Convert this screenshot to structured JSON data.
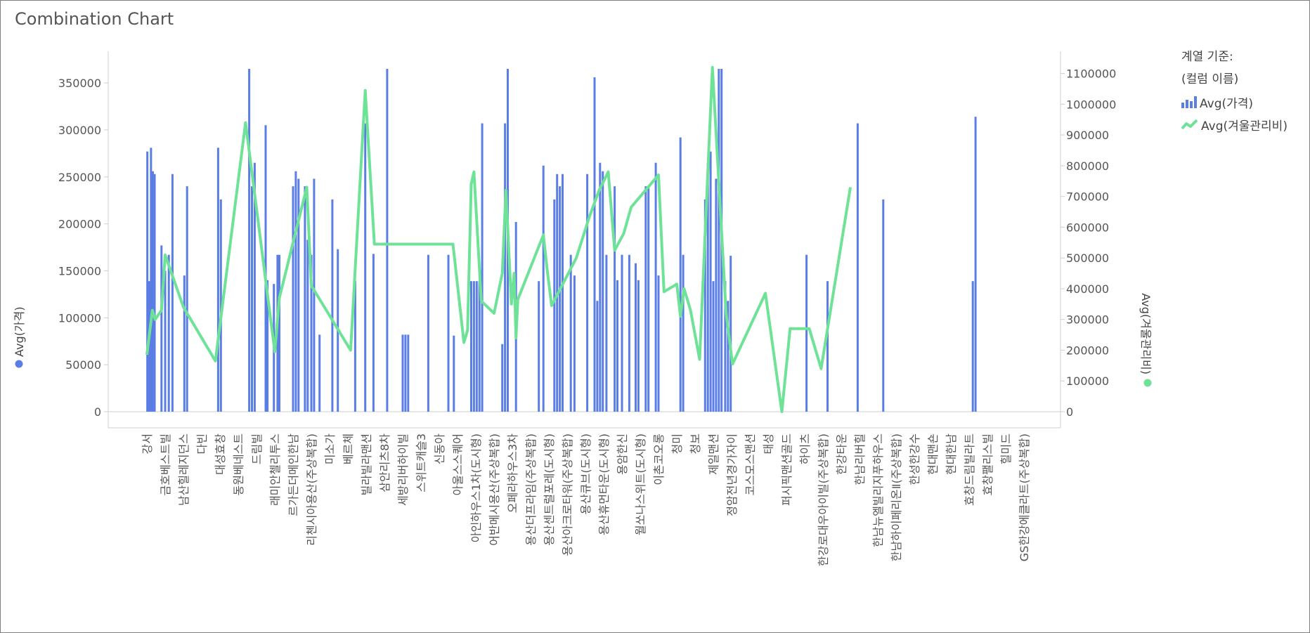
{
  "title": "Combination Chart",
  "legend": {
    "title_line1": "계열 기준:",
    "title_line2": "(컬럼 이름)",
    "items": [
      {
        "label": "Avg(가격)",
        "icon": "bar-series-icon"
      },
      {
        "label": "Avg(겨울관리비)",
        "icon": "line-series-icon"
      }
    ]
  },
  "colors": {
    "bar": "#5b7ee5",
    "line": "#6ee397",
    "axis": "#cfcfcf",
    "tick_text": "#555555"
  },
  "chart_data": {
    "type": "bar",
    "grid": false,
    "legend_position": "right",
    "y_left": {
      "label": "Avg(가격)",
      "ticks": [
        0,
        50000,
        100000,
        150000,
        200000,
        250000,
        300000,
        350000
      ],
      "range": [
        0,
        365000
      ]
    },
    "y_right": {
      "label": "Avg(겨울관리비)",
      "ticks": [
        0,
        100000,
        200000,
        300000,
        400000,
        500000,
        600000,
        700000,
        800000,
        900000,
        1000000,
        1100000
      ],
      "range": [
        0,
        1115000
      ]
    },
    "x_labels": [
      "강서",
      "금호베스트빌",
      "남산힐레지던스",
      "다빈",
      "대성효창",
      "동원베네스트",
      "드림빌",
      "래미안첼리투스",
      "르가든더메인한남",
      "리첸시아용산(주상복합)",
      "미소가",
      "베르체",
      "빌라빌라맨션",
      "삼안리츠8차",
      "세방리버하이빌",
      "스위트캐슬3",
      "신동아",
      "아울스스퀘어",
      "아인하우스1차(도시형)",
      "어반메시용산(주상복합)",
      "오페라하우스3차",
      "용산더프라임(주상복합)",
      "용산센트럴포레(도시형)",
      "용산아크로타워(주상복합)",
      "용산큐브(도시형)",
      "용산휴먼타운(도시형)",
      "용암한신",
      "월쏘나스위트(도시형)",
      "이촌코오롱",
      "청미",
      "청보",
      "제일맨션",
      "정암전년경가자이",
      "코스모스맨션",
      "태성",
      "퍼시픽맨션골드",
      "하이츠",
      "한강로대우아이빌(주상복합)",
      "한강타운",
      "한남리버힐",
      "한남뉴엘빌리지푸하우스",
      "한남하이페리온Ⅱ(주상복합)",
      "한성한강수",
      "현대맨숀",
      "현대한남",
      "효창드림빌라트",
      "효창팰리스빌",
      "힐미드",
      "GS한강에클라트(주상복합)"
    ],
    "x_label_slots": [
      0,
      2,
      4,
      6,
      8,
      10,
      12,
      14,
      16,
      18,
      20,
      22,
      24,
      26,
      28,
      30,
      32,
      34,
      36,
      38,
      40,
      42,
      44,
      46,
      48,
      50,
      52,
      54,
      56,
      58,
      60,
      62,
      64,
      66,
      68,
      70,
      72,
      74,
      76,
      78,
      80,
      82,
      84,
      86,
      88,
      90,
      92,
      94,
      96
    ],
    "slot_count": 98,
    "series": [
      {
        "name": "Avg(가격)",
        "type": "bar",
        "bars": [
          [
            0.05,
            277000
          ],
          [
            0.25,
            139000
          ],
          [
            0.45,
            281000
          ],
          [
            0.65,
            256000
          ],
          [
            0.85,
            253000
          ],
          [
            1.6,
            177000
          ],
          [
            2.0,
            150000
          ],
          [
            2.4,
            167000
          ],
          [
            2.8,
            253000
          ],
          [
            4.1,
            145000
          ],
          [
            4.4,
            240000
          ],
          [
            7.8,
            281000
          ],
          [
            8.1,
            226000
          ],
          [
            11.2,
            365000
          ],
          [
            11.5,
            240000
          ],
          [
            11.8,
            265000
          ],
          [
            13.0,
            305000
          ],
          [
            13.2,
            140000
          ],
          [
            13.9,
            136000
          ],
          [
            14.3,
            167000
          ],
          [
            14.5,
            167000
          ],
          [
            16.0,
            240000
          ],
          [
            16.3,
            256000
          ],
          [
            16.6,
            248000
          ],
          [
            17.3,
            240000
          ],
          [
            17.6,
            183000
          ],
          [
            18.0,
            167000
          ],
          [
            18.3,
            248000
          ],
          [
            18.9,
            82000
          ],
          [
            20.3,
            226000
          ],
          [
            20.9,
            173000
          ],
          [
            22.8,
            139000
          ],
          [
            23.9,
            307000
          ],
          [
            24.8,
            168000
          ],
          [
            26.3,
            365000
          ],
          [
            28.0,
            82000
          ],
          [
            28.3,
            82000
          ],
          [
            28.6,
            82000
          ],
          [
            30.8,
            167000
          ],
          [
            33.0,
            167000
          ],
          [
            33.6,
            81000
          ],
          [
            35.5,
            139000
          ],
          [
            35.8,
            139000
          ],
          [
            36.1,
            139000
          ],
          [
            36.4,
            139000
          ],
          [
            36.7,
            307000
          ],
          [
            38.9,
            72000
          ],
          [
            39.2,
            307000
          ],
          [
            39.5,
            365000
          ],
          [
            40.4,
            202000
          ],
          [
            42.9,
            139000
          ],
          [
            43.4,
            262000
          ],
          [
            44.6,
            226000
          ],
          [
            44.9,
            253000
          ],
          [
            45.2,
            240000
          ],
          [
            45.5,
            253000
          ],
          [
            46.4,
            167000
          ],
          [
            46.8,
            145000
          ],
          [
            48.2,
            253000
          ],
          [
            49.0,
            356000
          ],
          [
            49.3,
            118000
          ],
          [
            49.6,
            265000
          ],
          [
            49.9,
            256000
          ],
          [
            50.3,
            167000
          ],
          [
            51.2,
            240000
          ],
          [
            51.5,
            140000
          ],
          [
            52.0,
            167000
          ],
          [
            52.8,
            167000
          ],
          [
            53.5,
            158000
          ],
          [
            53.8,
            140000
          ],
          [
            54.6,
            240000
          ],
          [
            54.9,
            240000
          ],
          [
            55.7,
            265000
          ],
          [
            56.0,
            145000
          ],
          [
            58.4,
            292000
          ],
          [
            58.7,
            167000
          ],
          [
            61.1,
            226000
          ],
          [
            61.4,
            265000
          ],
          [
            61.7,
            277000
          ],
          [
            62.0,
            139000
          ],
          [
            62.3,
            248000
          ],
          [
            62.6,
            365000
          ],
          [
            62.9,
            365000
          ],
          [
            63.3,
            139000
          ],
          [
            63.6,
            118000
          ],
          [
            63.9,
            166000
          ],
          [
            72.2,
            167000
          ],
          [
            74.5,
            139000
          ],
          [
            77.8,
            307000
          ],
          [
            80.6,
            226000
          ],
          [
            90.4,
            139000
          ],
          [
            90.7,
            314000
          ]
        ]
      },
      {
        "name": "Avg(겨울관리비)",
        "type": "line",
        "points": [
          [
            0.0,
            185000
          ],
          [
            0.6,
            330000
          ],
          [
            0.9,
            300000
          ],
          [
            1.6,
            330000
          ],
          [
            2.0,
            510000
          ],
          [
            4.0,
            340000
          ],
          [
            7.5,
            165000
          ],
          [
            10.8,
            940000
          ],
          [
            14.0,
            195000
          ],
          [
            14.5,
            370000
          ],
          [
            17.5,
            730000
          ],
          [
            18.0,
            410000
          ],
          [
            22.3,
            200000
          ],
          [
            23.9,
            1045000
          ],
          [
            24.9,
            545000
          ],
          [
            33.5,
            545000
          ],
          [
            34.7,
            225000
          ],
          [
            35.1,
            265000
          ],
          [
            35.5,
            740000
          ],
          [
            35.8,
            780000
          ],
          [
            36.6,
            360000
          ],
          [
            38.0,
            320000
          ],
          [
            38.9,
            450000
          ],
          [
            39.3,
            720000
          ],
          [
            39.9,
            350000
          ],
          [
            40.2,
            450000
          ],
          [
            40.4,
            240000
          ],
          [
            40.6,
            365000
          ],
          [
            43.4,
            575000
          ],
          [
            43.8,
            465000
          ],
          [
            44.3,
            345000
          ],
          [
            47.0,
            500000
          ],
          [
            48.5,
            640000
          ],
          [
            49.5,
            720000
          ],
          [
            50.5,
            780000
          ],
          [
            51.2,
            525000
          ],
          [
            52.2,
            580000
          ],
          [
            53.0,
            665000
          ],
          [
            56.0,
            770000
          ],
          [
            56.6,
            390000
          ],
          [
            58.0,
            415000
          ],
          [
            58.4,
            310000
          ],
          [
            58.8,
            400000
          ],
          [
            59.5,
            330000
          ],
          [
            60.5,
            170000
          ],
          [
            61.9,
            1120000
          ],
          [
            63.4,
            320000
          ],
          [
            64.1,
            155000
          ],
          [
            67.7,
            385000
          ],
          [
            69.5,
            0
          ],
          [
            70.4,
            270000
          ],
          [
            72.5,
            270000
          ],
          [
            73.8,
            140000
          ],
          [
            77.0,
            730000
          ]
        ]
      }
    ]
  }
}
